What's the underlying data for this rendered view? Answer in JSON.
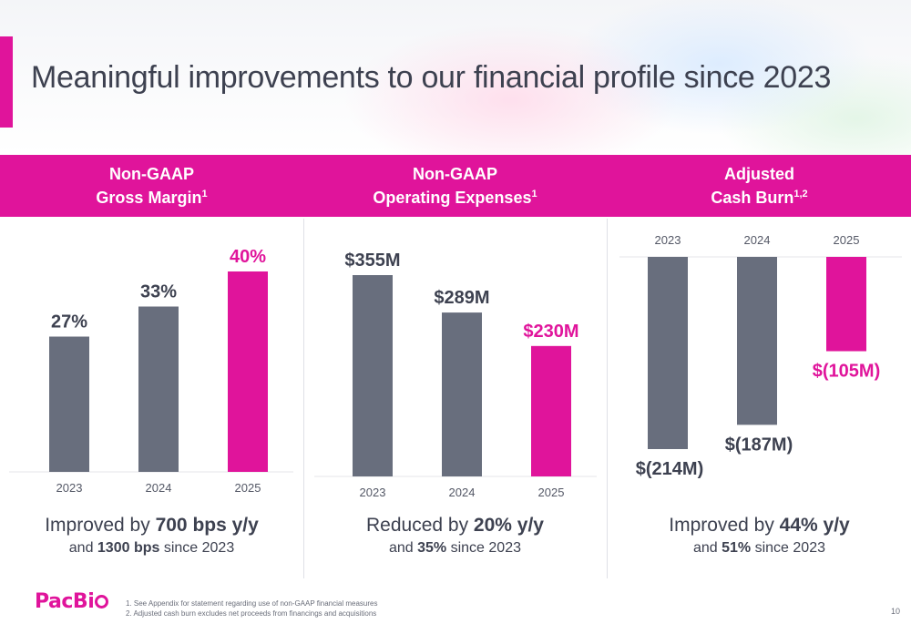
{
  "title": "Meaningful improvements to our financial profile since 2023",
  "panels": [
    {
      "header_line1": "Non-GAAP",
      "header_line2": "Gross Margin",
      "header_sup": "1",
      "summary_pre": "Improved by ",
      "summary_bold": "700 bps y/y",
      "sub_pre": "and ",
      "sub_bold": "1300 bps",
      "sub_post": " since 2023"
    },
    {
      "header_line1": "Non-GAAP",
      "header_line2": "Operating Expenses",
      "header_sup": "1",
      "summary_pre": "Reduced by ",
      "summary_bold": "20% y/y",
      "sub_pre": "and ",
      "sub_bold": "35%",
      "sub_post": " since 2023"
    },
    {
      "header_line1": "Adjusted",
      "header_line2": "Cash Burn",
      "header_sup": "1,2",
      "summary_pre": "Improved by ",
      "summary_bold": "44% y/y",
      "sub_pre": "and ",
      "sub_bold": "51%",
      "sub_post": " since 2023"
    }
  ],
  "chart_data": [
    {
      "type": "bar",
      "categories": [
        "2023",
        "2024",
        "2025"
      ],
      "values": [
        27,
        33,
        40
      ],
      "labels": [
        "27%",
        "33%",
        "40%"
      ],
      "title": "Non-GAAP Gross Margin",
      "ylim": [
        0,
        40
      ]
    },
    {
      "type": "bar",
      "categories": [
        "2023",
        "2024",
        "2025"
      ],
      "values": [
        355,
        289,
        230
      ],
      "labels": [
        "$355M",
        "$289M",
        "$230M"
      ],
      "title": "Non-GAAP Operating Expenses",
      "ylim": [
        0,
        355
      ]
    },
    {
      "type": "bar",
      "categories": [
        "2023",
        "2024",
        "2025"
      ],
      "values": [
        -214,
        -187,
        -105
      ],
      "labels": [
        "$(214M)",
        "$(187M)",
        "$(105M)"
      ],
      "title": "Adjusted Cash Burn",
      "ylim": [
        -214,
        0
      ]
    }
  ],
  "colors": {
    "accent": "#e0149b",
    "bar_gray": "#686e7d",
    "text": "#3d4150"
  },
  "logo": "PacBi",
  "footnotes": [
    "1. See Appendix for statement regarding use of non-GAAP financial measures",
    "2. Adjusted cash burn excludes net proceeds from financings and acquisitions"
  ],
  "page_number": "10"
}
